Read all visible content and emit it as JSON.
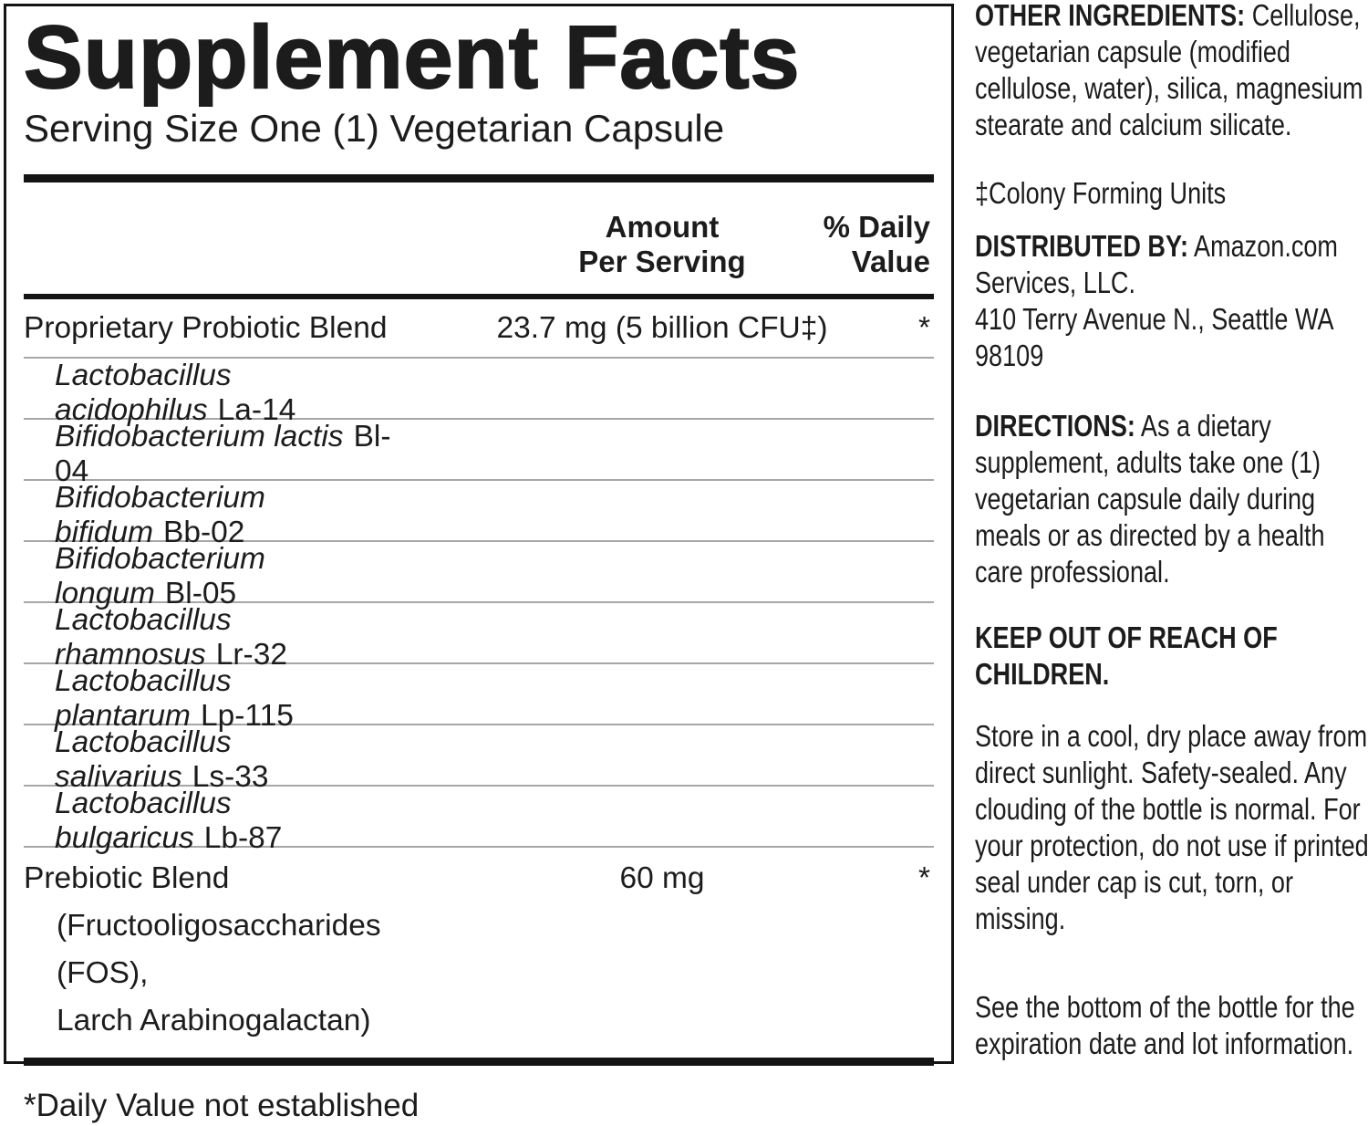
{
  "panel": {
    "title": "Supplement Facts",
    "serving_size": "Serving Size One (1) Vegetarian Capsule",
    "col_headers": {
      "amount_line1": "Amount",
      "amount_line2": "Per Serving",
      "dv_line1": "% Daily",
      "dv_line2": "Value"
    },
    "rows": [
      {
        "type": "main",
        "name": "Proprietary Probiotic Blend",
        "amount": "23.7 mg (5 billion CFU‡)",
        "dv": "*"
      },
      {
        "type": "sub",
        "species": "Lactobacillus acidophilus",
        "strain": "La-14"
      },
      {
        "type": "sub",
        "species": "Bifidobacterium lactis",
        "strain": "Bl-04"
      },
      {
        "type": "sub",
        "species": "Bifidobacterium bifidum",
        "strain": "Bb-02"
      },
      {
        "type": "sub",
        "species": "Bifidobacterium longum",
        "strain": "Bl-05"
      },
      {
        "type": "sub",
        "species": "Lactobacillus rhamnosus",
        "strain": "Lr-32"
      },
      {
        "type": "sub",
        "species": "Lactobacillus plantarum",
        "strain": "Lp-115"
      },
      {
        "type": "sub",
        "species": "Lactobacillus salivarius",
        "strain": "Ls-33"
      },
      {
        "type": "sub",
        "species": "Lactobacillus bulgaricus",
        "strain": "Lb-87"
      },
      {
        "type": "main",
        "name": "Prebiotic Blend",
        "extra_lines": [
          "(Fructooligosaccharides (FOS),",
          "Larch Arabinogalactan)"
        ],
        "amount": "60 mg",
        "dv": "*"
      }
    ],
    "footnote": "*Daily Value not established"
  },
  "info": {
    "sections": [
      {
        "label": "OTHER INGREDIENTS:",
        "text": " Cellulose, vegetarian capsule (modified cellulose, water), silica, magnesium stearate and calcium silicate."
      },
      {
        "text": "‡Colony Forming Units"
      },
      {
        "label": "DISTRIBUTED BY:",
        "text": " Amazon.com Services, LLC.",
        "lines": [
          "410 Terry Avenue N., Seattle WA",
          "98109"
        ]
      },
      {
        "label": "DIRECTIONS:",
        "text": " As a dietary supplement, adults take one (1) vegetarian capsule daily during meals or as directed by a health care professional."
      },
      {
        "text": "KEEP OUT OF REACH OF CHILDREN.",
        "bold_all": true
      },
      {
        "text": "Store in a cool, dry place away from direct sunlight. Safety-sealed. Any clouding of the bottle is normal. For your protection, do not use if printed seal under cap is cut, torn, or missing."
      },
      {
        "text": "See the bottom of the bottle for the expiration date and lot information."
      }
    ]
  },
  "colors": {
    "text": "#1c1c1c",
    "rule_dark": "#141414",
    "rule_light": "#a6a6a6",
    "background": "#ffffff"
  }
}
